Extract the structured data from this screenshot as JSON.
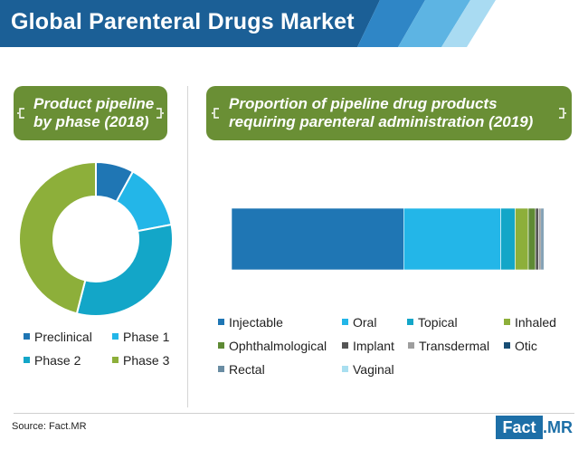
{
  "title": "Global Parenteral Drugs Market",
  "source": "Source: Fact.MR",
  "logo": {
    "text_left": "Fact",
    "text_right": ".MR"
  },
  "colors": {
    "header_blue": "#1b5f96",
    "banner_green": "#6a8f35"
  },
  "chart_data": [
    {
      "type": "pie",
      "title": "Product pipeline by phase (2018)",
      "title_lines": [
        "Product pipeline",
        "by phase (2018)"
      ],
      "categories": [
        "Preclinical",
        "Phase 1",
        "Phase 2",
        "Phase 3"
      ],
      "values": [
        8,
        14,
        32,
        46
      ],
      "colors": [
        "#1f76b4",
        "#23b6e8",
        "#13a6c8",
        "#8daf3a"
      ],
      "donut": true
    },
    {
      "type": "bar",
      "stacked": true,
      "orientation": "horizontal",
      "title": "Proportion of pipeline drug products requiring parenteral administration (2019)",
      "title_lines": [
        "Proportion of pipeline drug products",
        "requiring parenteral administration (2019)"
      ],
      "categories": [
        "Injectable",
        "Oral",
        "Topical",
        "Inhaled",
        "Ophthalmological",
        "Implant",
        "Transdermal",
        "Otic",
        "Rectal",
        "Vaginal"
      ],
      "values": [
        55.0,
        31.0,
        4.6,
        4.2,
        2.3,
        1.0,
        0.8,
        0.5,
        0.4,
        0.2
      ],
      "colors": [
        "#1f76b4",
        "#23b6e8",
        "#13a6c8",
        "#8daf3a",
        "#5e8a34",
        "#555555",
        "#9e9e9e",
        "#184d74",
        "#6a8da3",
        "#a9dff0"
      ],
      "legend_position": "bottom"
    }
  ]
}
